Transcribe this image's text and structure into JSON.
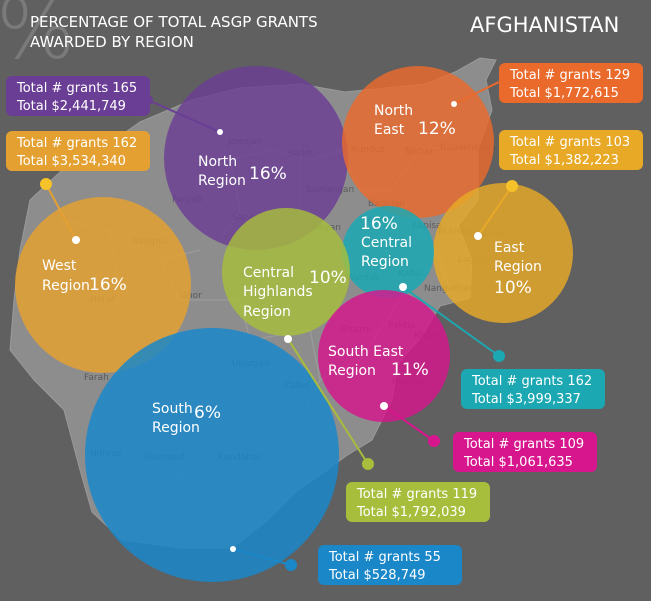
{
  "header": {
    "title_line1": "PERCENTAGE OF TOTAL ASGP GRANTS",
    "title_line2": "AWARDED BY REGION",
    "country": "AFGHANISTAN",
    "percent_symbol": "%"
  },
  "province_labels": [
    "Jowzjan",
    "Balkh",
    "Faryab",
    "Samangan",
    "Sar-e Pol",
    "Kunduz",
    "Takhar",
    "Badakhshan",
    "Baghlan",
    "Badghis",
    "Herat",
    "Ghor",
    "Bamyan",
    "Parwan",
    "Kapisa",
    "Nuristan",
    "Kunar",
    "Laghman",
    "Wardak",
    "Kabul",
    "Nangarhar",
    "Ghazni",
    "Paktia",
    "Khost",
    "Paktika",
    "Uruzgan",
    "Zabul",
    "Farah",
    "Nimruz",
    "Helmand",
    "Kandahar"
  ],
  "regions": [
    {
      "key": "north",
      "name_line1": "North",
      "name_line2": "Region",
      "percent": "16%",
      "percent_value": 16,
      "color": "#6b3e95",
      "grants_label": "Total # grants 165",
      "amount_label": "Total $2,441,749",
      "grants": 165,
      "amount": 2441749
    },
    {
      "key": "north_east",
      "name_line1": "North",
      "name_line2": "East",
      "percent": "12%",
      "percent_value": 12,
      "color": "#ea6a2c",
      "grants_label": "Total # grants 129",
      "amount_label": "Total $1,772,615",
      "grants": 129,
      "amount": 1772615
    },
    {
      "key": "east",
      "name_line1": "East",
      "name_line2": "Region",
      "percent": "10%",
      "percent_value": 10,
      "color": "#e8a927",
      "grants_label": "Total # grants 103",
      "amount_label": "Total $1,382,223",
      "grants": 103,
      "amount": 1382223
    },
    {
      "key": "west",
      "name_line1": "West",
      "name_line2": "Region",
      "percent": "16%",
      "percent_value": 16,
      "color": "#e4a132",
      "grants_label": "Total # grants 162",
      "amount_label": "Total $3,534,340",
      "grants": 162,
      "amount": 3534340
    },
    {
      "key": "central",
      "name_line1": "Central",
      "name_line2": "Region",
      "percent": "16%",
      "percent_value": 16,
      "color": "#1ba8b3",
      "grants_label": "Total # grants 162",
      "amount_label": "Total $3,999,337",
      "grants": 162,
      "amount": 3999337
    },
    {
      "key": "central_highlands",
      "name_line1": "Central",
      "name_line2": "Highlands",
      "name_line3": "Region",
      "percent": "10%",
      "percent_value": 10,
      "color": "#a7be3c",
      "grants_label": "Total # grants 119",
      "amount_label": "Total $1,792,039",
      "grants": 119,
      "amount": 1792039
    },
    {
      "key": "south_east",
      "name_line1": "South East",
      "name_line2": "Region",
      "percent": "11%",
      "percent_value": 11,
      "color": "#d7168e",
      "grants_label": "Total # grants 109",
      "amount_label": "Total $1,061,635",
      "grants": 109,
      "amount": 1061635
    },
    {
      "key": "south",
      "name_line1": "South",
      "name_line2": "Region",
      "percent": "6%",
      "percent_value": 6,
      "color": "#1a87c9",
      "grants_label": "Total # grants 55",
      "amount_label": "Total $528,749",
      "grants": 55,
      "amount": 528749
    }
  ]
}
